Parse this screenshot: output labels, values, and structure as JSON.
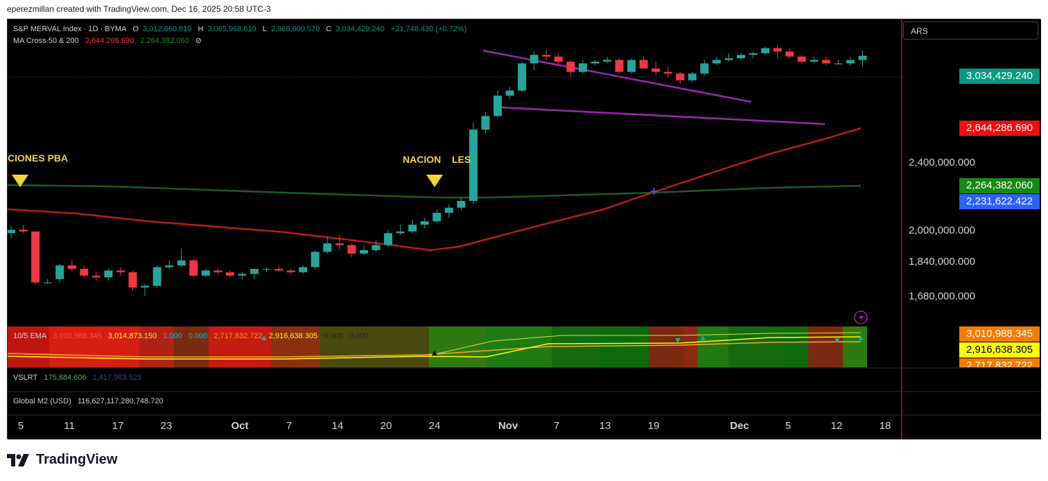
{
  "header": {
    "credit": "eperezmillan created with TradingView.com, Dec 16, 2025 20:58 UTC-3"
  },
  "currency_selector": "ARS",
  "legend": {
    "symbol": "S&P MERVAL Index · 1D · BYMA",
    "open_label": "O",
    "open": "3,012,660.810",
    "high_label": "H",
    "high": "3,065,968.610",
    "low_label": "L",
    "low": "2,969,600.570",
    "close_label": "C",
    "close": "3,034,429.240",
    "change": "+21,748.430 (+0.72%)",
    "ma_name": "MA Cross 50 & 200",
    "ma50": "2,644,286.690",
    "ma200": "2,264,382.060",
    "ma_icon": "⊘"
  },
  "annotations": [
    {
      "text": "CIONES PBA"
    },
    {
      "text": "NACION"
    },
    {
      "text": "LES"
    }
  ],
  "price_axis": {
    "ticks": [
      "2,400,000.000",
      "2,000,000.000",
      "1,840,000.000",
      "1,680,000.000"
    ],
    "labels": [
      {
        "text": "3,034,429.240",
        "color": "#089981"
      },
      {
        "text": "2,644,286.690",
        "color": "#f20d0d"
      },
      {
        "text": "2,264,382.060",
        "color": "#138a13"
      },
      {
        "text": "2,231,622.422",
        "color": "#2962ff"
      }
    ]
  },
  "ema_panel": {
    "name": "10/5 EMA",
    "values": [
      "3,010,988.345",
      "3,014,873.150",
      "1.000",
      "0.000",
      "2,717,832.722",
      "2,916,638.305",
      "0.000",
      "0.000"
    ],
    "axis_labels": [
      {
        "text": "3,010,988.345",
        "color": "#f57c00"
      },
      {
        "text": "2,916,638.305",
        "color": "#ffff00"
      },
      {
        "text": "2,717,832.722",
        "color": "#f57c00"
      }
    ]
  },
  "vslrt": {
    "name": "VSLRT",
    "v1": "175,884.606",
    "v2": "1,417,963.523"
  },
  "m2": {
    "name": "Global M2 (USD)",
    "value": "116,627,117,280,748.720"
  },
  "date_axis": [
    "5",
    "11",
    "17",
    "23",
    "Oct",
    "7",
    "14",
    "20",
    "24",
    "Nov",
    "7",
    "13",
    "19",
    "Dec",
    "5",
    "12",
    "18"
  ],
  "colors": {
    "up": "#26a69a",
    "down": "#f23645",
    "ma50": "#b71c1c",
    "ma200": "#1b5e20",
    "channel": "#9c27b0"
  },
  "chart_data": {
    "type": "candlestick",
    "title": "S&P MERVAL Index · 1D · BYMA",
    "series": [
      {
        "name": "MA Cross 50 & 200",
        "values": [
          2644286.69,
          2264382.06
        ]
      }
    ],
    "candles": [
      [
        1990000,
        2030000,
        1960000,
        2010000
      ],
      [
        2010000,
        2040000,
        1990000,
        2000000
      ],
      [
        2000000,
        2000000,
        1690000,
        1700000
      ],
      [
        1700000,
        1720000,
        1690000,
        1700000
      ],
      [
        1720000,
        1810000,
        1700000,
        1800000
      ],
      [
        1800000,
        1830000,
        1770000,
        1780000
      ],
      [
        1780000,
        1800000,
        1730000,
        1740000
      ],
      [
        1740000,
        1760000,
        1710000,
        1730000
      ],
      [
        1730000,
        1780000,
        1710000,
        1770000
      ],
      [
        1770000,
        1790000,
        1740000,
        1760000
      ],
      [
        1760000,
        1770000,
        1650000,
        1670000
      ],
      [
        1670000,
        1690000,
        1620000,
        1680000
      ],
      [
        1680000,
        1800000,
        1670000,
        1790000
      ],
      [
        1790000,
        1830000,
        1780000,
        1800000
      ],
      [
        1800000,
        1900000,
        1790000,
        1830000
      ],
      [
        1830000,
        1840000,
        1730000,
        1740000
      ],
      [
        1740000,
        1780000,
        1730000,
        1770000
      ],
      [
        1770000,
        1780000,
        1750000,
        1760000
      ],
      [
        1760000,
        1770000,
        1730000,
        1740000
      ],
      [
        1740000,
        1760000,
        1720000,
        1750000
      ],
      [
        1750000,
        1770000,
        1720000,
        1780000
      ],
      [
        1780000,
        1790000,
        1760000,
        1780000
      ],
      [
        1780000,
        1800000,
        1760000,
        1770000
      ],
      [
        1770000,
        1780000,
        1750000,
        1760000
      ],
      [
        1760000,
        1800000,
        1750000,
        1790000
      ],
      [
        1790000,
        1890000,
        1780000,
        1880000
      ],
      [
        1880000,
        1970000,
        1870000,
        1930000
      ],
      [
        1930000,
        1980000,
        1890000,
        1920000
      ],
      [
        1920000,
        1930000,
        1850000,
        1870000
      ],
      [
        1870000,
        1920000,
        1860000,
        1890000
      ],
      [
        1890000,
        1950000,
        1880000,
        1920000
      ],
      [
        1920000,
        2010000,
        1910000,
        1990000
      ],
      [
        1990000,
        2040000,
        1980000,
        2000000
      ],
      [
        2000000,
        2070000,
        1990000,
        2040000
      ],
      [
        2040000,
        2080000,
        2020000,
        2060000
      ],
      [
        2060000,
        2130000,
        2050000,
        2110000
      ],
      [
        2110000,
        2160000,
        2080000,
        2140000
      ],
      [
        2140000,
        2200000,
        2120000,
        2180000
      ],
      [
        2180000,
        2640000,
        2160000,
        2600000
      ],
      [
        2600000,
        2700000,
        2580000,
        2680000
      ],
      [
        2680000,
        2830000,
        2670000,
        2800000
      ],
      [
        2800000,
        2850000,
        2780000,
        2830000
      ],
      [
        2830000,
        3000000,
        2820000,
        2990000
      ],
      [
        2990000,
        3060000,
        2950000,
        3040000
      ],
      [
        3040000,
        3070000,
        3010000,
        3030000
      ],
      [
        3030000,
        3050000,
        2980000,
        3000000
      ],
      [
        3000000,
        3010000,
        2910000,
        2940000
      ],
      [
        2940000,
        3010000,
        2930000,
        2990000
      ],
      [
        2990000,
        3010000,
        2980000,
        3000000
      ],
      [
        3000000,
        3030000,
        2990000,
        3010000
      ],
      [
        3010000,
        3020000,
        2930000,
        2940000
      ],
      [
        2940000,
        3020000,
        2930000,
        3010000
      ],
      [
        3010000,
        3030000,
        2960000,
        2960000
      ],
      [
        2960000,
        3000000,
        2920000,
        2940000
      ],
      [
        2940000,
        2970000,
        2910000,
        2930000
      ],
      [
        2930000,
        2940000,
        2870000,
        2890000
      ],
      [
        2890000,
        2940000,
        2880000,
        2930000
      ],
      [
        2930000,
        3010000,
        2920000,
        2990000
      ],
      [
        2990000,
        3030000,
        2980000,
        3010000
      ],
      [
        3010000,
        3050000,
        3000000,
        3020000
      ],
      [
        3020000,
        3050000,
        3010000,
        3040000
      ],
      [
        3040000,
        3060000,
        3020000,
        3050000
      ],
      [
        3050000,
        3090000,
        3040000,
        3080000
      ],
      [
        3080000,
        3100000,
        3020000,
        3060000
      ],
      [
        3060000,
        3080000,
        3020000,
        3030000
      ],
      [
        3030000,
        3040000,
        2990000,
        3000000
      ],
      [
        3000000,
        3030000,
        2990000,
        3010000
      ],
      [
        3010000,
        3030000,
        2980000,
        2990000
      ],
      [
        2990000,
        3010000,
        2980000,
        2990000
      ],
      [
        2990000,
        3030000,
        2980000,
        3010000
      ],
      [
        3010000,
        3066000,
        2970000,
        3034429
      ]
    ]
  }
}
